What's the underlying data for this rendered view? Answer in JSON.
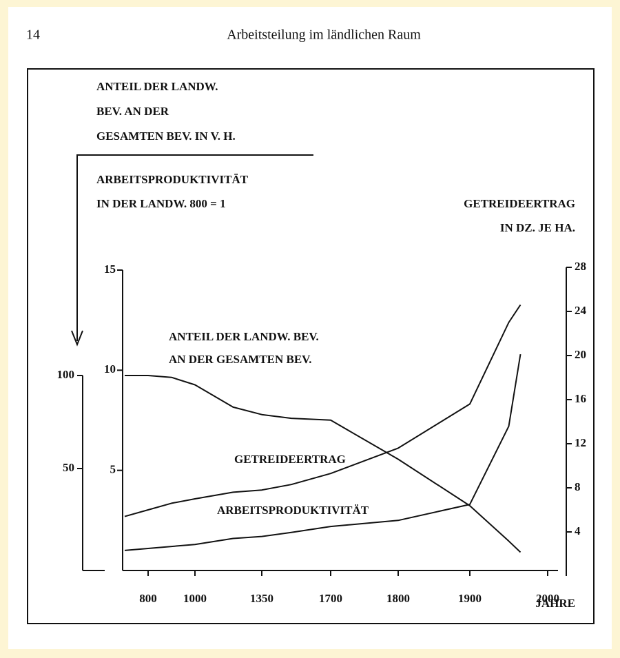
{
  "header": {
    "page_number": "14",
    "running_title": "Arbeitsteilung im ländlichen Raum"
  },
  "chart_data": {
    "type": "line",
    "ylabel": [
      "ANTEIL DER LANDW.",
      "BEV. AN DER",
      "GESAMTEN BEV. IN V. H."
    ],
    "y3label": [
      "ARBEITSPRODUKTIVITÄT",
      "IN DER LANDW. 800 = 1"
    ],
    "y2label": [
      "GETREIDEERTRAG",
      "IN DZ. JE HA."
    ],
    "xlabel": "JAHRE",
    "x": [
      700,
      800,
      900,
      1000,
      1200,
      1350,
      1500,
      1700,
      1800,
      1900,
      1950,
      1965
    ],
    "xlim": [
      700,
      2000
    ],
    "xticks": [
      800,
      1000,
      1350,
      1700,
      1800,
      1900,
      2000
    ],
    "ylim": [
      0,
      100
    ],
    "yticks": [
      50,
      100
    ],
    "y3lim": [
      0,
      15
    ],
    "y3ticks": [
      5,
      10,
      15
    ],
    "y2lim": [
      0,
      28
    ],
    "y2ticks": [
      4,
      8,
      12,
      16,
      20,
      24,
      28
    ],
    "series": [
      {
        "name": [
          "ANTEIL DER LANDW. BEV.",
          "AN DER GESAMTEN BEV."
        ],
        "color": "#111111",
        "axis": "y",
        "values": [
          100,
          100,
          99,
          95,
          83,
          79,
          77,
          76,
          55,
          30,
          11,
          5
        ]
      },
      {
        "name": [
          "GETREIDEERTRAG"
        ],
        "color": "#111111",
        "axis": "y2",
        "values": [
          5.4,
          6,
          6.6,
          7,
          7.6,
          7.8,
          8.3,
          9.3,
          11.6,
          15.6,
          23,
          24.6
        ]
      },
      {
        "name": [
          "ARBEITSPRODUKTIVITÄT"
        ],
        "color": "#111111",
        "axis": "y3",
        "values": [
          1,
          1.1,
          1.2,
          1.3,
          1.6,
          1.7,
          1.9,
          2.2,
          2.5,
          3.3,
          7.2,
          10.8
        ]
      }
    ]
  }
}
